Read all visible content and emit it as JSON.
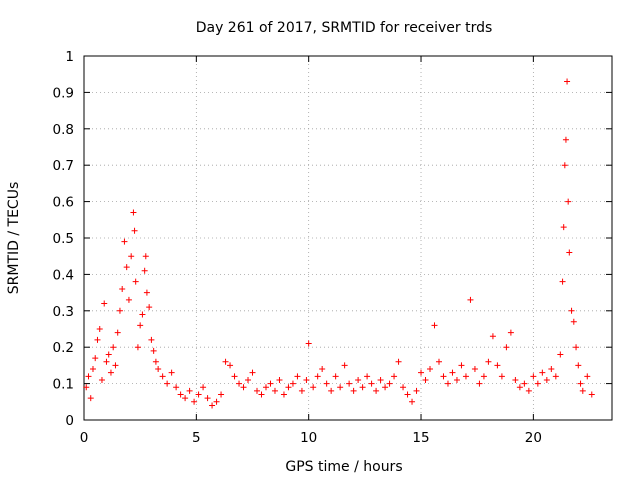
{
  "chart_data": {
    "type": "scatter",
    "title": "Day 261 of 2017, SRMTID for receiver trds",
    "xlabel": "GPS time / hours",
    "ylabel": "SRMTID / TECUs",
    "xlim": [
      0,
      23.5
    ],
    "ylim": [
      0,
      1
    ],
    "x_ticks": [
      0,
      5,
      10,
      15,
      20
    ],
    "x_tick_labels": [
      "0",
      "5",
      "10",
      "15",
      "20"
    ],
    "y_ticks": [
      0,
      0.1,
      0.2,
      0.3,
      0.4,
      0.5,
      0.6,
      0.7,
      0.8,
      0.9,
      1
    ],
    "y_tick_labels": [
      "0",
      "0.1",
      "0.2",
      "0.3",
      "0.4",
      "0.5",
      "0.6",
      "0.7",
      "0.8",
      "0.9",
      "1"
    ],
    "grid": true,
    "marker": "+",
    "marker_color": "#ff0000",
    "series": [
      {
        "name": "SRMTID",
        "points": [
          [
            0.1,
            0.09
          ],
          [
            0.2,
            0.12
          ],
          [
            0.3,
            0.06
          ],
          [
            0.4,
            0.14
          ],
          [
            0.5,
            0.17
          ],
          [
            0.6,
            0.22
          ],
          [
            0.7,
            0.25
          ],
          [
            0.8,
            0.11
          ],
          [
            0.9,
            0.32
          ],
          [
            1.0,
            0.16
          ],
          [
            1.1,
            0.18
          ],
          [
            1.2,
            0.13
          ],
          [
            1.3,
            0.2
          ],
          [
            1.4,
            0.15
          ],
          [
            1.5,
            0.24
          ],
          [
            1.6,
            0.3
          ],
          [
            1.7,
            0.36
          ],
          [
            1.8,
            0.49
          ],
          [
            1.9,
            0.42
          ],
          [
            2.0,
            0.33
          ],
          [
            2.1,
            0.45
          ],
          [
            2.2,
            0.57
          ],
          [
            2.25,
            0.52
          ],
          [
            2.3,
            0.38
          ],
          [
            2.4,
            0.2
          ],
          [
            2.5,
            0.26
          ],
          [
            2.6,
            0.29
          ],
          [
            2.7,
            0.41
          ],
          [
            2.75,
            0.45
          ],
          [
            2.8,
            0.35
          ],
          [
            2.9,
            0.31
          ],
          [
            3.0,
            0.22
          ],
          [
            3.1,
            0.19
          ],
          [
            3.2,
            0.16
          ],
          [
            3.3,
            0.14
          ],
          [
            3.5,
            0.12
          ],
          [
            3.7,
            0.1
          ],
          [
            3.9,
            0.13
          ],
          [
            4.1,
            0.09
          ],
          [
            4.3,
            0.07
          ],
          [
            4.5,
            0.06
          ],
          [
            4.7,
            0.08
          ],
          [
            4.9,
            0.05
          ],
          [
            5.1,
            0.07
          ],
          [
            5.3,
            0.09
          ],
          [
            5.5,
            0.06
          ],
          [
            5.7,
            0.04
          ],
          [
            5.9,
            0.05
          ],
          [
            6.1,
            0.07
          ],
          [
            6.3,
            0.16
          ],
          [
            6.5,
            0.15
          ],
          [
            6.7,
            0.12
          ],
          [
            6.9,
            0.1
          ],
          [
            7.1,
            0.09
          ],
          [
            7.3,
            0.11
          ],
          [
            7.5,
            0.13
          ],
          [
            7.7,
            0.08
          ],
          [
            7.9,
            0.07
          ],
          [
            8.1,
            0.09
          ],
          [
            8.3,
            0.1
          ],
          [
            8.5,
            0.08
          ],
          [
            8.7,
            0.11
          ],
          [
            8.9,
            0.07
          ],
          [
            9.1,
            0.09
          ],
          [
            9.3,
            0.1
          ],
          [
            9.5,
            0.12
          ],
          [
            9.7,
            0.08
          ],
          [
            9.9,
            0.11
          ],
          [
            10.0,
            0.21
          ],
          [
            10.2,
            0.09
          ],
          [
            10.4,
            0.12
          ],
          [
            10.6,
            0.14
          ],
          [
            10.8,
            0.1
          ],
          [
            11.0,
            0.08
          ],
          [
            11.2,
            0.12
          ],
          [
            11.4,
            0.09
          ],
          [
            11.6,
            0.15
          ],
          [
            11.8,
            0.1
          ],
          [
            12.0,
            0.08
          ],
          [
            12.2,
            0.11
          ],
          [
            12.4,
            0.09
          ],
          [
            12.6,
            0.12
          ],
          [
            12.8,
            0.1
          ],
          [
            13.0,
            0.08
          ],
          [
            13.2,
            0.11
          ],
          [
            13.4,
            0.09
          ],
          [
            13.6,
            0.1
          ],
          [
            13.8,
            0.12
          ],
          [
            14.0,
            0.16
          ],
          [
            14.2,
            0.09
          ],
          [
            14.4,
            0.07
          ],
          [
            14.6,
            0.05
          ],
          [
            14.8,
            0.08
          ],
          [
            15.0,
            0.13
          ],
          [
            15.2,
            0.11
          ],
          [
            15.4,
            0.14
          ],
          [
            15.6,
            0.26
          ],
          [
            15.8,
            0.16
          ],
          [
            16.0,
            0.12
          ],
          [
            16.2,
            0.1
          ],
          [
            16.4,
            0.13
          ],
          [
            16.6,
            0.11
          ],
          [
            16.8,
            0.15
          ],
          [
            17.0,
            0.12
          ],
          [
            17.2,
            0.33
          ],
          [
            17.4,
            0.14
          ],
          [
            17.6,
            0.1
          ],
          [
            17.8,
            0.12
          ],
          [
            18.0,
            0.16
          ],
          [
            18.2,
            0.23
          ],
          [
            18.4,
            0.15
          ],
          [
            18.6,
            0.12
          ],
          [
            18.8,
            0.2
          ],
          [
            19.0,
            0.24
          ],
          [
            19.2,
            0.11
          ],
          [
            19.4,
            0.09
          ],
          [
            19.6,
            0.1
          ],
          [
            19.8,
            0.08
          ],
          [
            20.0,
            0.12
          ],
          [
            20.2,
            0.1
          ],
          [
            20.4,
            0.13
          ],
          [
            20.6,
            0.11
          ],
          [
            20.8,
            0.14
          ],
          [
            21.0,
            0.12
          ],
          [
            21.2,
            0.18
          ],
          [
            21.3,
            0.38
          ],
          [
            21.35,
            0.53
          ],
          [
            21.4,
            0.7
          ],
          [
            21.45,
            0.77
          ],
          [
            21.5,
            0.93
          ],
          [
            21.55,
            0.6
          ],
          [
            21.6,
            0.46
          ],
          [
            21.7,
            0.3
          ],
          [
            21.8,
            0.27
          ],
          [
            21.9,
            0.2
          ],
          [
            22.0,
            0.15
          ],
          [
            22.1,
            0.1
          ],
          [
            22.2,
            0.08
          ],
          [
            22.4,
            0.12
          ],
          [
            22.6,
            0.07
          ]
        ]
      }
    ]
  }
}
